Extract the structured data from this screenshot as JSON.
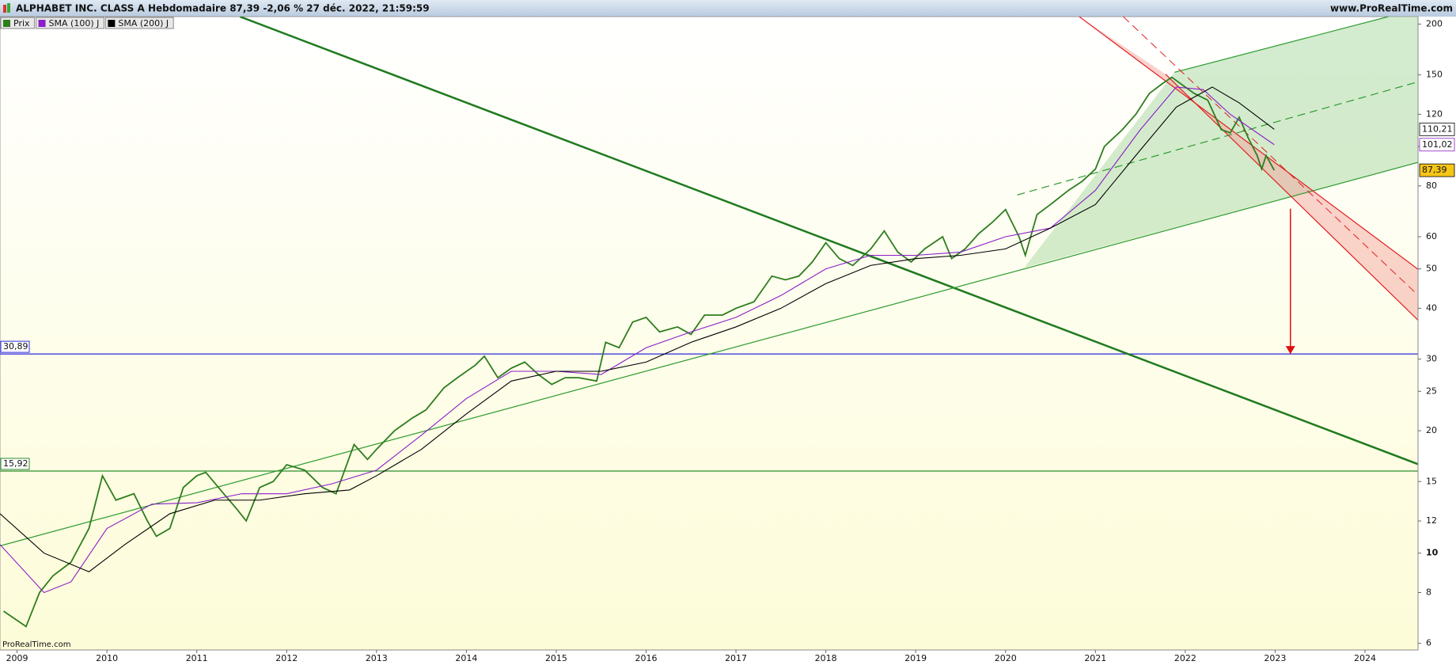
{
  "chart_data": {
    "type": "line",
    "title": "ALPHABET INC. CLASS A Hebdomadaire 87,39 -2,06 % 27 déc. 2022, 21:59:59",
    "source": "www.ProRealTime.com",
    "watermark": "ProRealTime.com",
    "log_scale": true,
    "xlim": [
      2008.81,
      2024.59
    ],
    "xticks": [
      2009,
      2010,
      2011,
      2012,
      2013,
      2014,
      2015,
      2016,
      2017,
      2018,
      2019,
      2020,
      2021,
      2022,
      2023,
      2024
    ],
    "ylim": [
      5.78,
      208.6
    ],
    "yticks": [
      6,
      8,
      10,
      12,
      15,
      20,
      25,
      30,
      40,
      50,
      60,
      80,
      100,
      120,
      150,
      200
    ],
    "series": [
      {
        "name": "Prix",
        "color": "#2e7d1e",
        "x": [
          2008.85,
          2009.1,
          2009.25,
          2009.4,
          2009.6,
          2009.8,
          2009.95,
          2010.1,
          2010.3,
          2010.45,
          2010.55,
          2010.7,
          2010.85,
          2011.0,
          2011.1,
          2011.3,
          2011.45,
          2011.55,
          2011.7,
          2011.85,
          2012.0,
          2012.2,
          2012.4,
          2012.55,
          2012.75,
          2012.9,
          2013.0,
          2013.2,
          2013.4,
          2013.55,
          2013.75,
          2013.9,
          2014.1,
          2014.2,
          2014.35,
          2014.5,
          2014.65,
          2014.8,
          2014.95,
          2015.1,
          2015.25,
          2015.45,
          2015.55,
          2015.7,
          2015.85,
          2016.0,
          2016.15,
          2016.35,
          2016.5,
          2016.65,
          2016.85,
          2017.0,
          2017.2,
          2017.4,
          2017.55,
          2017.7,
          2017.85,
          2018.0,
          2018.15,
          2018.3,
          2018.5,
          2018.65,
          2018.8,
          2018.95,
          2019.1,
          2019.3,
          2019.4,
          2019.55,
          2019.7,
          2019.85,
          2020.0,
          2020.15,
          2020.22,
          2020.35,
          2020.5,
          2020.7,
          2020.85,
          2021.0,
          2021.1,
          2021.3,
          2021.45,
          2021.6,
          2021.75,
          2021.85,
          2022.0,
          2022.1,
          2022.25,
          2022.4,
          2022.5,
          2022.6,
          2022.7,
          2022.8,
          2022.85,
          2022.9,
          2022.99
        ],
        "values": [
          7.2,
          6.6,
          8.0,
          8.8,
          9.5,
          11.5,
          15.5,
          13.5,
          14,
          12.0,
          11.0,
          11.5,
          14.5,
          15.5,
          15.8,
          14.0,
          12.8,
          12.0,
          14.5,
          15.0,
          16.5,
          16,
          14.5,
          14.0,
          18.5,
          17.0,
          18.0,
          20,
          21.5,
          22.5,
          25.5,
          27,
          29,
          30.5,
          27,
          28.5,
          29.5,
          27.5,
          26.0,
          27,
          27,
          26.5,
          33,
          32,
          37,
          38,
          35,
          36,
          34.5,
          38.5,
          38.5,
          40,
          41.5,
          48,
          47,
          48,
          52,
          58,
          53,
          51,
          56,
          62,
          55,
          52,
          56,
          60,
          53,
          56,
          61,
          65,
          70,
          60,
          54,
          68,
          72,
          78,
          82,
          88,
          100,
          110,
          120,
          135,
          143,
          148,
          140,
          135,
          130,
          110,
          108,
          118,
          105,
          95,
          88,
          95,
          87.39
        ]
      },
      {
        "name": "SMA (100) J",
        "color": "#8a1ec8",
        "x": [
          2008.81,
          2009.3,
          2009.6,
          2010.0,
          2010.5,
          2011.0,
          2011.5,
          2012.0,
          2012.5,
          2013.0,
          2013.5,
          2014.0,
          2014.5,
          2015.0,
          2015.5,
          2016.0,
          2016.5,
          2017.0,
          2017.5,
          2018.0,
          2018.5,
          2019.0,
          2019.5,
          2020.0,
          2020.5,
          2021.0,
          2021.5,
          2021.9,
          2022.2,
          2022.5,
          2022.99
        ],
        "values": [
          10.5,
          8,
          8.5,
          11.5,
          13.2,
          13.3,
          14,
          14,
          14.8,
          16,
          19.5,
          24,
          28,
          28,
          27.5,
          32,
          35,
          38,
          43,
          50,
          54,
          54,
          55,
          60,
          63,
          78,
          110,
          140,
          138,
          120,
          101.02
        ]
      },
      {
        "name": "SMA (200) J",
        "color": "#000000",
        "x": [
          2008.81,
          2009.3,
          2009.8,
          2010.2,
          2010.7,
          2011.2,
          2011.7,
          2012.2,
          2012.7,
          2013.0,
          2013.5,
          2014.0,
          2014.5,
          2015.0,
          2015.5,
          2016.0,
          2016.5,
          2017.0,
          2017.5,
          2018.0,
          2018.5,
          2019.0,
          2019.5,
          2020.0,
          2020.5,
          2021.0,
          2021.5,
          2021.9,
          2022.3,
          2022.6,
          2022.99
        ],
        "values": [
          12.5,
          10,
          9,
          10.5,
          12.5,
          13.5,
          13.5,
          14,
          14.3,
          15.5,
          18,
          22,
          26.5,
          28,
          28,
          29.5,
          33,
          36,
          40,
          46,
          51,
          53,
          54,
          56,
          63,
          72,
          98,
          125,
          140,
          128,
          110.21
        ]
      }
    ],
    "end_labels": [
      {
        "value": 110.21,
        "label": "110,21",
        "color": "#000000",
        "background": "#ffffff"
      },
      {
        "value": 101.02,
        "label": "101,02",
        "color": "#8a1ec8",
        "background": "#ffffff"
      },
      {
        "value": 87.39,
        "label": "87,39",
        "color": "#000000",
        "background": "#f5c518"
      }
    ],
    "levels": [
      {
        "value": 30.89,
        "label": "30,89",
        "color": "#2a2ae0"
      },
      {
        "value": 15.92,
        "label": "15,92",
        "color": "#2e8b2e"
      }
    ],
    "zones": [
      {
        "x": [
          2020.21,
          2024.59,
          2024.59,
          2024.26,
          2021.88
        ],
        "y": [
          50.4,
          91.4,
          208.6,
          208.6,
          152.2
        ],
        "color": "#a8d8a0"
      },
      {
        "x": [
          2020.82,
          2024.59,
          2024.59,
          2021.78
        ],
        "y": [
          208.6,
          49.9,
          37.4,
          150.6
        ],
        "color": "#f4a6a0"
      }
    ],
    "trendlines": [
      {
        "x": [
          2011.48,
          2024.59
        ],
        "y": [
          208.6,
          16.55
        ],
        "color": "#1e7a1e",
        "width": 2.5,
        "dashed": false
      },
      {
        "x": [
          2008.81,
          2024.59
        ],
        "y": [
          10.42,
          91.4
        ],
        "color": "#2e9b2e",
        "width": 1.2,
        "dashed": false
      },
      {
        "x": [
          2021.88,
          2024.26
        ],
        "y": [
          152.2,
          208.6
        ],
        "color": "#2e9b2e",
        "width": 1.2,
        "dashed": false
      },
      {
        "x": [
          2020.13,
          2024.59
        ],
        "y": [
          76.0,
          144.2
        ],
        "color": "#2e9b2e",
        "width": 1.2,
        "dashed": true
      },
      {
        "x": [
          2020.82,
          2024.59
        ],
        "y": [
          208.6,
          49.9
        ],
        "color": "#e02020",
        "width": 1.2,
        "dashed": false
      },
      {
        "x": [
          2021.31,
          2024.59
        ],
        "y": [
          208.6,
          43.1
        ],
        "color": "#e02020",
        "width": 1,
        "dashed": true
      },
      {
        "x": [
          2021.78,
          2024.59
        ],
        "y": [
          150.6,
          37.4
        ],
        "color": "#e02020",
        "width": 1.2,
        "dashed": false
      }
    ],
    "arrow": {
      "x": 2023.17,
      "y": [
        70.3,
        30.89
      ],
      "color": "#e01010"
    }
  }
}
